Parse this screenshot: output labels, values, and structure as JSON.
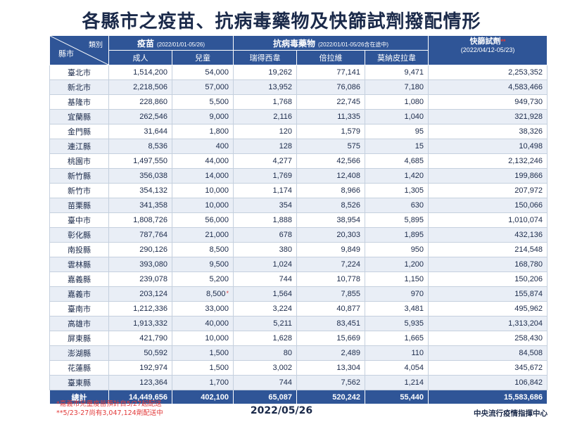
{
  "title": "各縣市之疫苗、抗病毒藥物及快篩試劑撥配情形",
  "header": {
    "corner_top": "類別",
    "corner_bottom": "縣市",
    "vaccine_label": "疫苗",
    "vaccine_range": "(2022/01/01-05/26)",
    "antiviral_label": "抗病毒藥物",
    "antiviral_range": "(2022/01/01-05/26含在途中)",
    "kit_label": "快篩試劑",
    "kit_star": "**",
    "kit_range": "(2022/04/12-05/23)",
    "sub_labels": [
      "成人",
      "兒童",
      "瑞得西韋",
      "倍拉維",
      "莫納皮拉韋"
    ]
  },
  "rows": [
    {
      "city": "臺北市",
      "vals": [
        "1,514,200",
        "54,000",
        "19,262",
        "77,141",
        "9,471",
        "2,253,352"
      ]
    },
    {
      "city": "新北市",
      "vals": [
        "2,218,506",
        "57,000",
        "13,952",
        "76,086",
        "7,180",
        "4,583,466"
      ]
    },
    {
      "city": "基隆市",
      "vals": [
        "228,860",
        "5,500",
        "1,768",
        "22,745",
        "1,080",
        "949,730"
      ]
    },
    {
      "city": "宜蘭縣",
      "vals": [
        "262,546",
        "9,000",
        "2,116",
        "11,335",
        "1,040",
        "321,928"
      ]
    },
    {
      "city": "金門縣",
      "vals": [
        "31,644",
        "1,800",
        "120",
        "1,579",
        "95",
        "38,326"
      ]
    },
    {
      "city": "連江縣",
      "vals": [
        "8,536",
        "400",
        "128",
        "575",
        "15",
        "10,498"
      ]
    },
    {
      "city": "桃園市",
      "vals": [
        "1,497,550",
        "44,000",
        "4,277",
        "42,566",
        "4,685",
        "2,132,246"
      ]
    },
    {
      "city": "新竹縣",
      "vals": [
        "356,038",
        "14,000",
        "1,769",
        "12,408",
        "1,420",
        "199,866"
      ]
    },
    {
      "city": "新竹市",
      "vals": [
        "354,132",
        "10,000",
        "1,174",
        "8,966",
        "1,305",
        "207,972"
      ]
    },
    {
      "city": "苗栗縣",
      "vals": [
        "341,358",
        "10,000",
        "354",
        "8,526",
        "630",
        "150,066"
      ]
    },
    {
      "city": "臺中市",
      "vals": [
        "1,808,726",
        "56,000",
        "1,888",
        "38,954",
        "5,895",
        "1,010,074"
      ]
    },
    {
      "city": "彰化縣",
      "vals": [
        "787,764",
        "21,000",
        "678",
        "20,303",
        "1,895",
        "432,136"
      ]
    },
    {
      "city": "南投縣",
      "vals": [
        "290,126",
        "8,500",
        "380",
        "9,849",
        "950",
        "214,548"
      ]
    },
    {
      "city": "雲林縣",
      "vals": [
        "393,080",
        "9,500",
        "1,024",
        "7,224",
        "1,200",
        "168,780"
      ]
    },
    {
      "city": "嘉義縣",
      "vals": [
        "239,078",
        "5,200",
        "744",
        "10,778",
        "1,150",
        "150,206"
      ]
    },
    {
      "city": "嘉義市",
      "vals": [
        "203,124",
        "8,500",
        "1,564",
        "7,855",
        "970",
        "155,874"
      ],
      "star": "*"
    },
    {
      "city": "臺南市",
      "vals": [
        "1,212,336",
        "33,000",
        "3,224",
        "40,877",
        "3,481",
        "495,962"
      ]
    },
    {
      "city": "高雄市",
      "vals": [
        "1,913,332",
        "40,000",
        "5,211",
        "83,451",
        "5,935",
        "1,313,204"
      ]
    },
    {
      "city": "屏東縣",
      "vals": [
        "421,790",
        "10,000",
        "1,628",
        "15,669",
        "1,665",
        "258,430"
      ]
    },
    {
      "city": "澎湖縣",
      "vals": [
        "50,592",
        "1,500",
        "80",
        "2,489",
        "110",
        "84,508"
      ]
    },
    {
      "city": "花蓮縣",
      "vals": [
        "192,974",
        "1,500",
        "3,002",
        "13,304",
        "4,054",
        "345,672"
      ]
    },
    {
      "city": "臺東縣",
      "vals": [
        "123,364",
        "1,700",
        "744",
        "7,562",
        "1,214",
        "106,842"
      ]
    }
  ],
  "total": {
    "city": "總計",
    "vals": [
      "14,449,656",
      "402,100",
      "65,087",
      "520,242",
      "55,440",
      "15,583,686"
    ]
  },
  "notes": [
    "*嘉義市兒童疫苗預計自5/27起配送",
    "**5/23-27尚有3,047,124劑配送中"
  ],
  "footer": {
    "date": "2022/05/26",
    "org": "中央流行疫情指揮中心"
  },
  "colors": {
    "header_bg": "#2f5597",
    "stripe": "#e9eef6",
    "accent_red": "#e23b3b",
    "title": "#1b2a4a"
  }
}
